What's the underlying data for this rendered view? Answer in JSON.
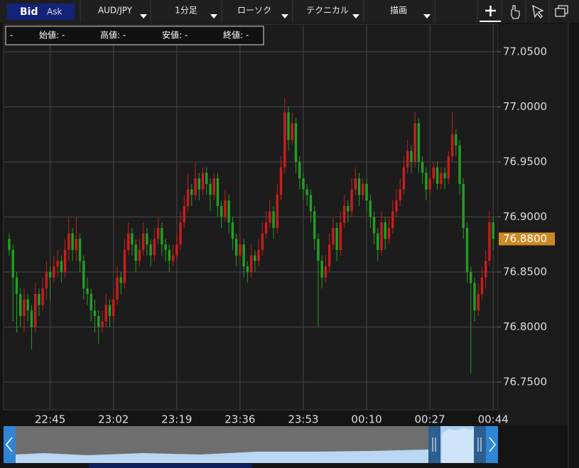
{
  "toolbar": {
    "bid": "Bid",
    "ask": "Ask",
    "pair": "AUD/JPY",
    "timeframe": "1分足",
    "chart_style": "ローソク",
    "technical": "テクニカル",
    "drawing": "描画"
  },
  "info_bar": {
    "dash": "-",
    "open": "始値: -",
    "high": "高値: -",
    "low": "安値: -",
    "close": "終値: -"
  },
  "chart_data": {
    "type": "candlestick",
    "up_color": "#c81e1e",
    "down_color": "#22a022",
    "ylim": [
      76.7248,
      77.0745
    ],
    "yticks": [
      {
        "value": 76.75,
        "label": "76.7500"
      },
      {
        "value": 76.8,
        "label": "76.8000"
      },
      {
        "value": 76.85,
        "label": "76.8500"
      },
      {
        "value": 76.9,
        "label": "76.9000"
      },
      {
        "value": 76.95,
        "label": "76.9500"
      },
      {
        "value": 77.0,
        "label": "77.0000"
      },
      {
        "value": 77.05,
        "label": "77.0500"
      }
    ],
    "grid": true,
    "current_price": {
      "value": 76.88,
      "label": "76.8800"
    },
    "x": [
      "22:34",
      "22:35",
      "22:36",
      "22:37",
      "22:38",
      "22:39",
      "22:40",
      "22:41",
      "22:42",
      "22:43",
      "22:44",
      "22:45",
      "22:46",
      "22:47",
      "22:48",
      "22:49",
      "22:50",
      "22:51",
      "22:52",
      "22:53",
      "22:54",
      "22:55",
      "22:56",
      "22:57",
      "22:58",
      "22:59",
      "23:00",
      "23:01",
      "23:02",
      "23:03",
      "23:04",
      "23:05",
      "23:06",
      "23:07",
      "23:08",
      "23:09",
      "23:10",
      "23:11",
      "23:12",
      "23:13",
      "23:14",
      "23:15",
      "23:16",
      "23:17",
      "23:18",
      "23:19",
      "23:20",
      "23:21",
      "23:22",
      "23:23",
      "23:24",
      "23:25",
      "23:26",
      "23:27",
      "23:28",
      "23:29",
      "23:30",
      "23:31",
      "23:32",
      "23:33",
      "23:34",
      "23:35",
      "23:36",
      "23:37",
      "23:38",
      "23:39",
      "23:40",
      "23:41",
      "23:42",
      "23:43",
      "23:44",
      "23:45",
      "23:46",
      "23:47",
      "23:48",
      "23:49",
      "23:50",
      "23:51",
      "23:52",
      "23:53",
      "23:54",
      "23:55",
      "23:56",
      "23:57",
      "23:58",
      "23:59",
      "00:00",
      "00:01",
      "00:02",
      "00:03",
      "00:04",
      "00:05",
      "00:06",
      "00:07",
      "00:08",
      "00:09",
      "00:10",
      "00:11",
      "00:12",
      "00:13",
      "00:14",
      "00:15",
      "00:16",
      "00:17",
      "00:18",
      "00:19",
      "00:20",
      "00:21",
      "00:22",
      "00:23",
      "00:24",
      "00:25",
      "00:26",
      "00:27",
      "00:28",
      "00:29",
      "00:30",
      "00:31",
      "00:32",
      "00:33",
      "00:34",
      "00:35",
      "00:36",
      "00:37",
      "00:38",
      "00:39",
      "00:40",
      "00:41",
      "00:42",
      "00:43",
      "00:44"
    ],
    "ohlc": [
      [
        76.88,
        76.885,
        76.865,
        76.87
      ],
      [
        76.87,
        76.875,
        76.805,
        76.845
      ],
      [
        76.845,
        76.85,
        76.795,
        76.83
      ],
      [
        76.83,
        76.835,
        76.8,
        76.81
      ],
      [
        76.81,
        76.835,
        76.795,
        76.825
      ],
      [
        76.825,
        76.83,
        76.805,
        76.815
      ],
      [
        76.815,
        76.82,
        76.78,
        76.8
      ],
      [
        76.8,
        76.84,
        76.795,
        76.83
      ],
      [
        76.83,
        76.835,
        76.81,
        76.82
      ],
      [
        76.82,
        76.845,
        76.815,
        76.835
      ],
      [
        76.835,
        76.86,
        76.825,
        76.85
      ],
      [
        76.85,
        76.855,
        76.825,
        76.845
      ],
      [
        76.845,
        76.865,
        76.84,
        76.855
      ],
      [
        76.855,
        76.87,
        76.845,
        76.86
      ],
      [
        76.86,
        76.865,
        76.84,
        76.85
      ],
      [
        76.85,
        76.88,
        76.845,
        76.87
      ],
      [
        76.87,
        76.9,
        76.86,
        76.885
      ],
      [
        76.885,
        76.89,
        76.86,
        76.87
      ],
      [
        76.87,
        76.9,
        76.86,
        76.88
      ],
      [
        76.88,
        76.885,
        76.85,
        76.86
      ],
      [
        76.86,
        76.865,
        76.825,
        76.835
      ],
      [
        76.835,
        76.845,
        76.82,
        76.83
      ],
      [
        76.83,
        76.835,
        76.805,
        76.815
      ],
      [
        76.815,
        76.825,
        76.795,
        76.81
      ],
      [
        76.81,
        76.815,
        76.785,
        76.8
      ],
      [
        76.8,
        76.815,
        76.795,
        76.805
      ],
      [
        76.805,
        76.83,
        76.8,
        76.82
      ],
      [
        76.82,
        76.825,
        76.8,
        76.81
      ],
      [
        76.81,
        76.835,
        76.805,
        76.825
      ],
      [
        76.825,
        76.855,
        76.82,
        76.845
      ],
      [
        76.845,
        76.85,
        76.83,
        76.84
      ],
      [
        76.84,
        76.88,
        76.835,
        76.87
      ],
      [
        76.87,
        76.895,
        76.865,
        76.885
      ],
      [
        76.885,
        76.89,
        76.865,
        76.875
      ],
      [
        76.875,
        76.88,
        76.85,
        76.86
      ],
      [
        76.86,
        76.88,
        76.855,
        76.87
      ],
      [
        76.87,
        76.895,
        76.865,
        76.885
      ],
      [
        76.885,
        76.89,
        76.865,
        76.875
      ],
      [
        76.875,
        76.88,
        76.855,
        76.865
      ],
      [
        76.865,
        76.89,
        76.86,
        76.88
      ],
      [
        76.88,
        76.9,
        76.875,
        76.89
      ],
      [
        76.89,
        76.895,
        76.865,
        76.875
      ],
      [
        76.875,
        76.88,
        76.86,
        76.87
      ],
      [
        76.87,
        76.875,
        76.85,
        76.86
      ],
      [
        76.86,
        76.875,
        76.855,
        76.865
      ],
      [
        76.865,
        76.885,
        76.86,
        76.875
      ],
      [
        76.875,
        76.905,
        76.87,
        76.895
      ],
      [
        76.895,
        76.92,
        76.89,
        76.91
      ],
      [
        76.91,
        76.94,
        76.905,
        76.925
      ],
      [
        76.925,
        76.93,
        76.91,
        76.92
      ],
      [
        76.92,
        76.95,
        76.915,
        76.935
      ],
      [
        76.935,
        76.94,
        76.915,
        76.925
      ],
      [
        76.925,
        76.945,
        76.92,
        76.94
      ],
      [
        76.94,
        76.945,
        76.92,
        76.93
      ],
      [
        76.93,
        76.935,
        76.905,
        76.92
      ],
      [
        76.92,
        76.94,
        76.915,
        76.935
      ],
      [
        76.935,
        76.94,
        76.9,
        76.91
      ],
      [
        76.91,
        76.915,
        76.89,
        76.9
      ],
      [
        76.9,
        76.925,
        76.895,
        76.915
      ],
      [
        76.915,
        76.92,
        76.885,
        76.895
      ],
      [
        76.895,
        76.9,
        76.87,
        76.88
      ],
      [
        76.88,
        76.885,
        76.855,
        76.865
      ],
      [
        76.865,
        76.885,
        76.86,
        76.875
      ],
      [
        76.875,
        76.88,
        76.845,
        76.855
      ],
      [
        76.855,
        76.86,
        76.84,
        76.85
      ],
      [
        76.85,
        76.875,
        76.845,
        76.865
      ],
      [
        76.865,
        76.87,
        76.85,
        76.86
      ],
      [
        76.86,
        76.88,
        76.855,
        76.87
      ],
      [
        76.87,
        76.895,
        76.865,
        76.885
      ],
      [
        76.885,
        76.905,
        76.88,
        76.895
      ],
      [
        76.895,
        76.915,
        76.89,
        76.905
      ],
      [
        76.905,
        76.91,
        76.88,
        76.89
      ],
      [
        76.89,
        76.93,
        76.885,
        76.92
      ],
      [
        76.92,
        76.955,
        76.915,
        76.945
      ],
      [
        76.945,
        77.008,
        76.94,
        76.995
      ],
      [
        76.995,
        77.0,
        76.96,
        76.97
      ],
      [
        76.97,
        76.995,
        76.965,
        76.985
      ],
      [
        76.985,
        76.99,
        76.94,
        76.95
      ],
      [
        76.95,
        76.955,
        76.925,
        76.935
      ],
      [
        76.935,
        76.94,
        76.915,
        76.925
      ],
      [
        76.925,
        76.93,
        76.91,
        76.92
      ],
      [
        76.92,
        76.925,
        76.895,
        76.905
      ],
      [
        76.905,
        76.91,
        76.87,
        76.88
      ],
      [
        76.88,
        76.885,
        76.8,
        76.86
      ],
      [
        76.86,
        76.865,
        76.835,
        76.845
      ],
      [
        76.845,
        76.865,
        76.84,
        76.855
      ],
      [
        76.855,
        76.885,
        76.85,
        76.875
      ],
      [
        76.875,
        76.9,
        76.87,
        76.89
      ],
      [
        76.89,
        76.895,
        76.86,
        76.87
      ],
      [
        76.87,
        76.905,
        76.865,
        76.895
      ],
      [
        76.895,
        76.92,
        76.89,
        76.91
      ],
      [
        76.91,
        76.915,
        76.895,
        76.905
      ],
      [
        76.905,
        76.935,
        76.9,
        76.925
      ],
      [
        76.925,
        76.945,
        76.92,
        76.935
      ],
      [
        76.935,
        76.94,
        76.91,
        76.92
      ],
      [
        76.92,
        76.935,
        76.915,
        76.93
      ],
      [
        76.93,
        76.935,
        76.905,
        76.915
      ],
      [
        76.915,
        76.92,
        76.89,
        76.9
      ],
      [
        76.9,
        76.905,
        76.875,
        76.885
      ],
      [
        76.885,
        76.89,
        76.86,
        76.87
      ],
      [
        76.87,
        76.905,
        76.865,
        76.895
      ],
      [
        76.895,
        76.9,
        76.87,
        76.88
      ],
      [
        76.88,
        76.9,
        76.875,
        76.89
      ],
      [
        76.89,
        76.915,
        76.885,
        76.905
      ],
      [
        76.905,
        76.925,
        76.9,
        76.915
      ],
      [
        76.915,
        76.935,
        76.91,
        76.925
      ],
      [
        76.925,
        76.955,
        76.92,
        76.945
      ],
      [
        76.945,
        76.97,
        76.94,
        76.96
      ],
      [
        76.96,
        76.965,
        76.94,
        76.95
      ],
      [
        76.95,
        76.995,
        76.945,
        76.985
      ],
      [
        76.985,
        76.99,
        76.94,
        76.95
      ],
      [
        76.95,
        76.955,
        76.93,
        76.94
      ],
      [
        76.94,
        76.945,
        76.915,
        76.925
      ],
      [
        76.925,
        76.94,
        76.92,
        76.935
      ],
      [
        76.935,
        76.95,
        76.93,
        76.945
      ],
      [
        76.945,
        76.95,
        76.925,
        76.93
      ],
      [
        76.93,
        76.945,
        76.925,
        76.94
      ],
      [
        76.94,
        76.945,
        76.925,
        76.935
      ],
      [
        76.935,
        76.96,
        76.93,
        76.955
      ],
      [
        76.955,
        76.995,
        76.95,
        76.975
      ],
      [
        76.975,
        76.98,
        76.955,
        76.965
      ],
      [
        76.965,
        76.97,
        76.92,
        76.93
      ],
      [
        76.93,
        76.935,
        76.88,
        76.89
      ],
      [
        76.89,
        76.895,
        76.84,
        76.85
      ],
      [
        76.85,
        76.855,
        76.758,
        76.84
      ],
      [
        76.84,
        76.845,
        76.805,
        76.815
      ],
      [
        76.815,
        76.84,
        76.81,
        76.83
      ],
      [
        76.83,
        76.855,
        76.825,
        76.845
      ],
      [
        76.845,
        76.87,
        76.835,
        76.86
      ],
      [
        76.86,
        76.905,
        76.855,
        76.895
      ],
      [
        76.895,
        76.9,
        76.87,
        76.88
      ]
    ]
  }
}
